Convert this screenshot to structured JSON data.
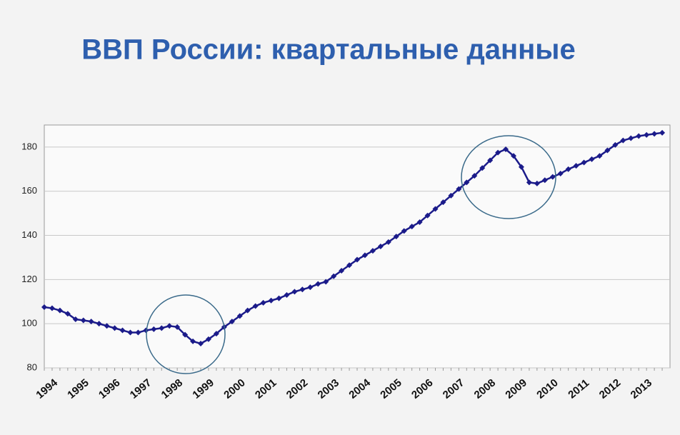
{
  "chart_data": {
    "type": "line",
    "title": "ВВП России: квартальные данные",
    "categories": [
      "1994",
      null,
      null,
      null,
      "1995",
      null,
      null,
      null,
      "1996",
      null,
      null,
      null,
      "1997",
      null,
      null,
      null,
      "1998",
      null,
      null,
      null,
      "1999",
      null,
      null,
      null,
      "2000",
      null,
      null,
      null,
      "2001",
      null,
      null,
      null,
      "2002",
      null,
      null,
      null,
      "2003",
      null,
      null,
      null,
      "2004",
      null,
      null,
      null,
      "2005",
      null,
      null,
      null,
      "2006",
      null,
      null,
      null,
      "2007",
      null,
      null,
      null,
      "2008",
      null,
      null,
      null,
      "2009",
      null,
      null,
      null,
      "2010",
      null,
      null,
      null,
      "2011",
      null,
      null,
      null,
      "2012",
      null,
      null,
      null,
      "2013",
      null,
      null,
      null
    ],
    "series": [
      {
        "name": "ВВП",
        "color": "#1b1b8a",
        "values": [
          107.5,
          107,
          106,
          104.5,
          102,
          101.5,
          101,
          100,
          99,
          98,
          97,
          96,
          96,
          97,
          97.5,
          98,
          99,
          98.5,
          95,
          92,
          91,
          93,
          95.5,
          98.5,
          101,
          103.5,
          106,
          108,
          109.5,
          110.5,
          111.5,
          113,
          114.5,
          115.5,
          116.5,
          118,
          119,
          121.5,
          124,
          126.5,
          129,
          131,
          133,
          135,
          137,
          139.5,
          142,
          144,
          146,
          149,
          152,
          155,
          158,
          161,
          164,
          167,
          170.5,
          174,
          177.5,
          179,
          176,
          171,
          164,
          163.5,
          165,
          166.5,
          168,
          170,
          171.5,
          173,
          174.5,
          176,
          178.5,
          181,
          183,
          184,
          185,
          185.5,
          186,
          186.5
        ]
      }
    ],
    "ylim": [
      80,
      190
    ],
    "yticks": [
      80,
      100,
      120,
      140,
      160,
      180
    ],
    "grid": true
  }
}
